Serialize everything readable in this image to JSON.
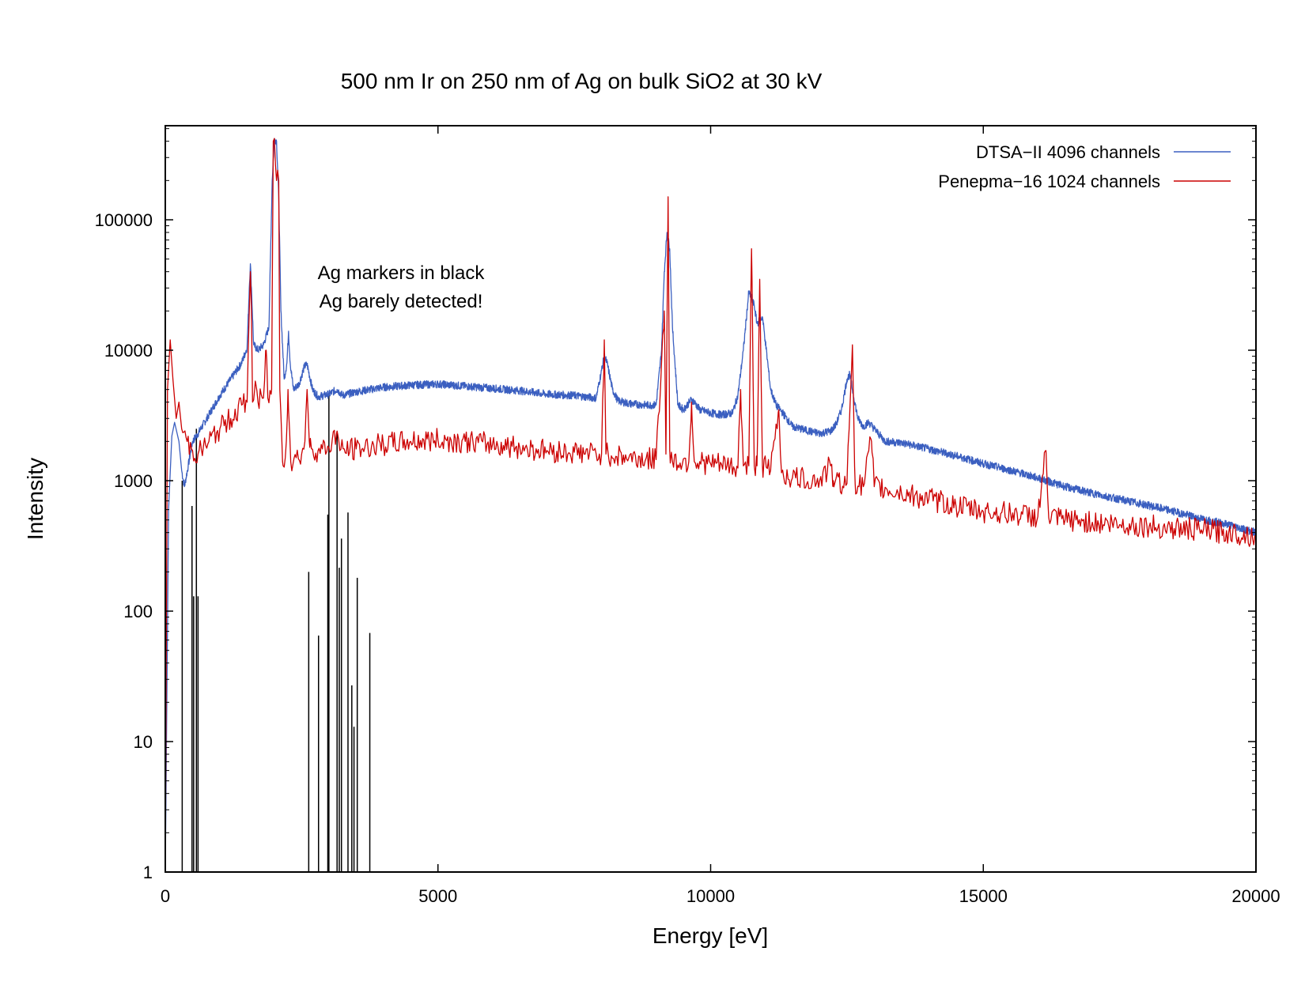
{
  "chart_data": {
    "type": "line",
    "title": "500 nm Ir on 250 nm of Ag on bulk SiO2 at 30 kV",
    "xlabel": "Energy [eV]",
    "ylabel": "Intensity",
    "xlim": [
      0,
      20000
    ],
    "ylim": [
      1,
      500000
    ],
    "yscale": "log",
    "x_ticks": [
      0,
      5000,
      10000,
      15000,
      20000
    ],
    "x_tick_labels": [
      "0",
      "5000",
      "10000",
      "15000",
      "20000"
    ],
    "y_ticks": [
      1,
      10,
      100,
      1000,
      10000,
      100000
    ],
    "y_tick_labels": [
      "1",
      "10",
      "100",
      "1000",
      "10000",
      "100000"
    ],
    "grid": false,
    "legend_position": "top-right",
    "annotations": [
      "Ag markers in black",
      "Ag barely detected!"
    ],
    "series": [
      {
        "name": "DTSA−II 4096 channels",
        "color": "#3b5fc0",
        "points": [
          [
            0,
            1
          ],
          [
            60,
            600
          ],
          [
            120,
            2200
          ],
          [
            170,
            2800
          ],
          [
            250,
            2000
          ],
          [
            300,
            1200
          ],
          [
            350,
            900
          ],
          [
            420,
            1300
          ],
          [
            500,
            2000
          ],
          [
            600,
            2300
          ],
          [
            800,
            3200
          ],
          [
            1000,
            4500
          ],
          [
            1200,
            6000
          ],
          [
            1400,
            8000
          ],
          [
            1500,
            10500
          ],
          [
            1540,
            30000
          ],
          [
            1560,
            46000
          ],
          [
            1580,
            30000
          ],
          [
            1620,
            11000
          ],
          [
            1700,
            10000
          ],
          [
            1800,
            11000
          ],
          [
            1900,
            15000
          ],
          [
            1960,
            200000
          ],
          [
            2000,
            420000
          ],
          [
            2040,
            400000
          ],
          [
            2080,
            150000
          ],
          [
            2120,
            20000
          ],
          [
            2180,
            6000
          ],
          [
            2230,
            8000
          ],
          [
            2260,
            14000
          ],
          [
            2290,
            8000
          ],
          [
            2350,
            5000
          ],
          [
            2450,
            5500
          ],
          [
            2550,
            7500
          ],
          [
            2600,
            7800
          ],
          [
            2700,
            5000
          ],
          [
            2800,
            4400
          ],
          [
            3000,
            4600
          ],
          [
            3150,
            5000
          ],
          [
            3250,
            4500
          ],
          [
            3500,
            4800
          ],
          [
            4000,
            5200
          ],
          [
            4500,
            5400
          ],
          [
            5000,
            5500
          ],
          [
            5500,
            5300
          ],
          [
            6000,
            5100
          ],
          [
            6500,
            4900
          ],
          [
            7000,
            4600
          ],
          [
            7500,
            4500
          ],
          [
            7900,
            4300
          ],
          [
            8000,
            7000
          ],
          [
            8050,
            9000
          ],
          [
            8100,
            8000
          ],
          [
            8200,
            5000
          ],
          [
            8300,
            4100
          ],
          [
            8500,
            3900
          ],
          [
            8800,
            3800
          ],
          [
            9000,
            3800
          ],
          [
            9100,
            10000
          ],
          [
            9150,
            40000
          ],
          [
            9200,
            80000
          ],
          [
            9250,
            60000
          ],
          [
            9300,
            15000
          ],
          [
            9400,
            3800
          ],
          [
            9500,
            3500
          ],
          [
            9650,
            4200
          ],
          [
            9700,
            4000
          ],
          [
            9800,
            3500
          ],
          [
            10000,
            3300
          ],
          [
            10200,
            3200
          ],
          [
            10400,
            3300
          ],
          [
            10500,
            4500
          ],
          [
            10600,
            10000
          ],
          [
            10700,
            28000
          ],
          [
            10800,
            22000
          ],
          [
            10850,
            16000
          ],
          [
            10950,
            18000
          ],
          [
            11000,
            12000
          ],
          [
            11100,
            5000
          ],
          [
            11200,
            3800
          ],
          [
            11300,
            3400
          ],
          [
            11500,
            2600
          ],
          [
            11800,
            2400
          ],
          [
            12000,
            2300
          ],
          [
            12200,
            2400
          ],
          [
            12300,
            2700
          ],
          [
            12400,
            3500
          ],
          [
            12500,
            6000
          ],
          [
            12550,
            6500
          ],
          [
            12600,
            5000
          ],
          [
            12700,
            3000
          ],
          [
            12800,
            2600
          ],
          [
            12900,
            2800
          ],
          [
            13000,
            2500
          ],
          [
            13200,
            2000
          ],
          [
            13500,
            1950
          ],
          [
            14000,
            1750
          ],
          [
            14500,
            1550
          ],
          [
            15000,
            1350
          ],
          [
            15500,
            1200
          ],
          [
            16000,
            1050
          ],
          [
            16500,
            900
          ],
          [
            17000,
            800
          ],
          [
            17500,
            720
          ],
          [
            18000,
            650
          ],
          [
            18500,
            580
          ],
          [
            19000,
            510
          ],
          [
            19500,
            460
          ],
          [
            20000,
            400
          ]
        ]
      },
      {
        "name": "Penepma−16 1024 channels",
        "color": "#cc0000",
        "points": [
          [
            0,
            1
          ],
          [
            40,
            5000
          ],
          [
            90,
            12000
          ],
          [
            140,
            6000
          ],
          [
            200,
            3000
          ],
          [
            250,
            4000
          ],
          [
            300,
            2500
          ],
          [
            400,
            2000
          ],
          [
            500,
            1700
          ],
          [
            600,
            1600
          ],
          [
            800,
            2000
          ],
          [
            1000,
            2500
          ],
          [
            1200,
            3000
          ],
          [
            1400,
            3800
          ],
          [
            1500,
            4000
          ],
          [
            1540,
            20000
          ],
          [
            1560,
            40000
          ],
          [
            1580,
            20000
          ],
          [
            1600,
            4000
          ],
          [
            1650,
            5800
          ],
          [
            1700,
            4000
          ],
          [
            1800,
            4300
          ],
          [
            1850,
            10000
          ],
          [
            1880,
            4300
          ],
          [
            1950,
            5000
          ],
          [
            1980,
            400000
          ],
          [
            2000,
            420000
          ],
          [
            2040,
            200000
          ],
          [
            2060,
            240000
          ],
          [
            2080,
            200000
          ],
          [
            2100,
            5000
          ],
          [
            2150,
            1400
          ],
          [
            2200,
            1500
          ],
          [
            2250,
            5000
          ],
          [
            2300,
            1400
          ],
          [
            2400,
            1500
          ],
          [
            2500,
            1600
          ],
          [
            2560,
            2000
          ],
          [
            2600,
            5000
          ],
          [
            2650,
            1800
          ],
          [
            2800,
            1700
          ],
          [
            3000,
            1800
          ],
          [
            3150,
            2400
          ],
          [
            3200,
            1700
          ],
          [
            3500,
            1750
          ],
          [
            4000,
            1900
          ],
          [
            4500,
            2000
          ],
          [
            5000,
            2050
          ],
          [
            5500,
            2000
          ],
          [
            6000,
            1900
          ],
          [
            6500,
            1800
          ],
          [
            7000,
            1700
          ],
          [
            7500,
            1650
          ],
          [
            8000,
            1600
          ],
          [
            8050,
            12000
          ],
          [
            8080,
            1600
          ],
          [
            8500,
            1500
          ],
          [
            9000,
            1450
          ],
          [
            9150,
            20000
          ],
          [
            9180,
            1600
          ],
          [
            9220,
            150000
          ],
          [
            9250,
            1700
          ],
          [
            9300,
            1400
          ],
          [
            9600,
            1400
          ],
          [
            9650,
            4000
          ],
          [
            9700,
            1400
          ],
          [
            10000,
            1350
          ],
          [
            10300,
            1300
          ],
          [
            10500,
            1250
          ],
          [
            10550,
            5000
          ],
          [
            10600,
            1300
          ],
          [
            10700,
            1300
          ],
          [
            10750,
            60000
          ],
          [
            10800,
            1300
          ],
          [
            10850,
            1300
          ],
          [
            10900,
            35000
          ],
          [
            10950,
            1300
          ],
          [
            11100,
            1200
          ],
          [
            11250,
            3500
          ],
          [
            11300,
            1150
          ],
          [
            11500,
            1050
          ],
          [
            12000,
            1000
          ],
          [
            12200,
            1300
          ],
          [
            12250,
            1000
          ],
          [
            12500,
            950
          ],
          [
            12600,
            11000
          ],
          [
            12650,
            950
          ],
          [
            12800,
            900
          ],
          [
            12900,
            1700
          ],
          [
            12950,
            2000
          ],
          [
            13000,
            900
          ],
          [
            13500,
            800
          ],
          [
            14000,
            720
          ],
          [
            14500,
            640
          ],
          [
            15000,
            580
          ],
          [
            15500,
            560
          ],
          [
            16000,
            530
          ],
          [
            16150,
            1700
          ],
          [
            16200,
            520
          ],
          [
            16500,
            500
          ],
          [
            17000,
            480
          ],
          [
            17500,
            460
          ],
          [
            18000,
            450
          ],
          [
            18500,
            430
          ],
          [
            19000,
            420
          ],
          [
            19500,
            400
          ],
          [
            20000,
            380
          ]
        ]
      },
      {
        "name": "",
        "color": "#000000",
        "style": "impulses",
        "points": [
          [
            310,
            1000
          ],
          [
            490,
            640
          ],
          [
            520,
            130
          ],
          [
            570,
            2500
          ],
          [
            600,
            130
          ],
          [
            2630,
            200
          ],
          [
            2810,
            65
          ],
          [
            2980,
            550
          ],
          [
            3000,
            4500
          ],
          [
            3150,
            2400
          ],
          [
            3190,
            215
          ],
          [
            3230,
            360
          ],
          [
            3350,
            570
          ],
          [
            3420,
            27
          ],
          [
            3460,
            13
          ],
          [
            3520,
            180
          ],
          [
            3750,
            68
          ]
        ]
      }
    ]
  }
}
